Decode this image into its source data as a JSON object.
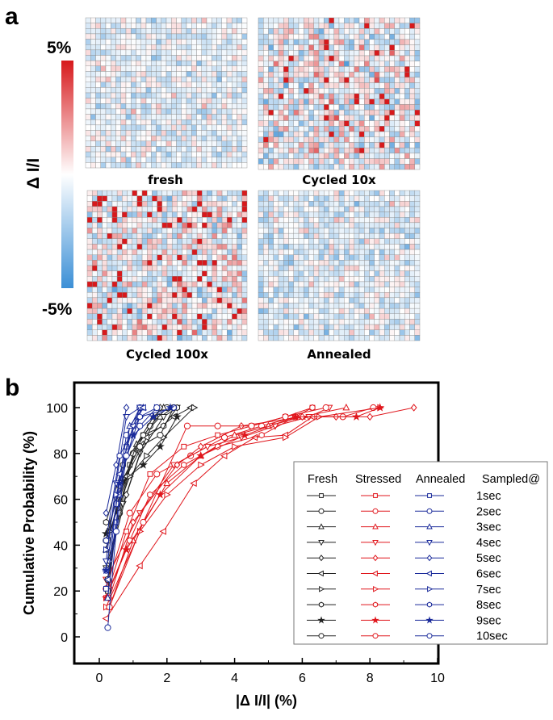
{
  "panel_a": {
    "letter": "a",
    "colorbar": {
      "max_label": "5%",
      "min_label": "-5%",
      "title": "Δ I/I",
      "range": [
        -5,
        5
      ],
      "colors": {
        "max": "#d7191c",
        "mid": "#ffffff",
        "min": "#3b8fd6"
      }
    },
    "heatmaps": [
      {
        "label": "fresh"
      },
      {
        "label": "Cycled 10x"
      },
      {
        "label": "Cycled 100x"
      },
      {
        "label": "Annealed"
      }
    ]
  },
  "panel_b": {
    "letter": "b"
  },
  "chart_data": {
    "type": "line",
    "xlabel": "|Δ I/I| (%)",
    "ylabel": "Cumulative Probability (%)",
    "xlim": [
      -0.75,
      10
    ],
    "ylim": [
      -12,
      111
    ],
    "xticks": [
      "0",
      "2",
      "4",
      "6",
      "8",
      "10"
    ],
    "yticks": [
      "0",
      "20",
      "40",
      "60",
      "80",
      "100"
    ],
    "grid": false,
    "legend_placement": "right",
    "legend": {
      "headers": [
        "Fresh",
        "Stressed",
        "Annealed",
        "Sampled@"
      ],
      "rows": [
        "1sec",
        "2sec",
        "3sec",
        "4sec",
        "5sec",
        "6sec",
        "7sec",
        "8sec",
        "9sec",
        "10sec"
      ]
    },
    "markers": [
      "square",
      "circle",
      "triangle-up",
      "triangle-down",
      "diamond",
      "triangle-left",
      "triangle-right",
      "hexagon",
      "star",
      "circle"
    ],
    "groups": [
      {
        "name": "Fresh",
        "color": "#222222",
        "series": [
          [
            [
              0.25,
              20
            ],
            [
              0.5,
              50
            ],
            [
              0.9,
              75
            ],
            [
              1.3,
              88
            ],
            [
              1.8,
              96
            ],
            [
              2.2,
              100
            ]
          ],
          [
            [
              0.25,
              25
            ],
            [
              0.6,
              54
            ],
            [
              1.0,
              80
            ],
            [
              1.5,
              92
            ],
            [
              2.0,
              100
            ]
          ],
          [
            [
              0.2,
              38
            ],
            [
              0.6,
              62
            ],
            [
              1.1,
              84
            ],
            [
              1.6,
              96
            ],
            [
              1.9,
              100
            ]
          ],
          [
            [
              0.2,
              30
            ],
            [
              0.7,
              58
            ],
            [
              1.2,
              80
            ],
            [
              1.9,
              96
            ],
            [
              2.3,
              100
            ]
          ],
          [
            [
              0.3,
              33
            ],
            [
              0.8,
              62
            ],
            [
              1.3,
              84
            ],
            [
              1.8,
              100
            ]
          ],
          [
            [
              0.25,
              42
            ],
            [
              0.8,
              70
            ],
            [
              1.4,
              87
            ],
            [
              2.2,
              96
            ],
            [
              2.7,
              100
            ]
          ],
          [
            [
              0.3,
              46
            ],
            [
              0.9,
              70
            ],
            [
              1.4,
              79
            ],
            [
              1.9,
              87
            ],
            [
              2.8,
              100
            ]
          ],
          [
            [
              0.2,
              50
            ],
            [
              0.7,
              75
            ],
            [
              1.3,
              88
            ],
            [
              1.9,
              92
            ],
            [
              2.3,
              100
            ]
          ],
          [
            [
              0.2,
              45
            ],
            [
              0.7,
              68
            ],
            [
              1.3,
              75
            ],
            [
              1.8,
              83
            ],
            [
              2.3,
              96
            ]
          ],
          [
            [
              0.2,
              42
            ],
            [
              0.6,
              66
            ],
            [
              1.2,
              83
            ],
            [
              1.8,
              88
            ],
            [
              2.2,
              100
            ]
          ]
        ]
      },
      {
        "name": "Stressed",
        "color": "#e0161c",
        "series": [
          [
            [
              0.2,
              17
            ],
            [
              0.8,
              46
            ],
            [
              1.5,
              71
            ],
            [
              2.5,
              83
            ],
            [
              3.5,
              88
            ],
            [
              4.5,
              92
            ],
            [
              5.5,
              96
            ],
            [
              6.3,
              100
            ]
          ],
          [
            [
              0.2,
              21
            ],
            [
              0.9,
              54
            ],
            [
              1.7,
              71
            ],
            [
              2.7,
              79
            ],
            [
              3.7,
              87
            ],
            [
              4.8,
              92
            ],
            [
              5.8,
              96
            ],
            [
              7.2,
              96
            ],
            [
              8.1,
              100
            ]
          ],
          [
            [
              0.3,
              13
            ],
            [
              1.0,
              42
            ],
            [
              2.0,
              67
            ],
            [
              3.0,
              79
            ],
            [
              4.0,
              88
            ],
            [
              5.0,
              92
            ],
            [
              6.0,
              96
            ],
            [
              7.3,
              100
            ]
          ],
          [
            [
              0.2,
              25
            ],
            [
              1.2,
              54
            ],
            [
              2.2,
              75
            ],
            [
              3.2,
              83
            ],
            [
              4.2,
              87
            ],
            [
              5.2,
              92
            ],
            [
              6.2,
              96
            ],
            [
              6.8,
              100
            ]
          ],
          [
            [
              0.3,
              17
            ],
            [
              1.0,
              50
            ],
            [
              2.3,
              75
            ],
            [
              3.0,
              83
            ],
            [
              4.2,
              92
            ],
            [
              6.0,
              96
            ],
            [
              7.0,
              96
            ],
            [
              8.0,
              96
            ],
            [
              9.3,
              100
            ]
          ],
          [
            [
              0.2,
              8
            ],
            [
              1.2,
              31
            ],
            [
              1.9,
              46
            ],
            [
              2.8,
              67
            ],
            [
              3.7,
              79
            ],
            [
              4.6,
              87
            ],
            [
              5.5,
              88
            ],
            [
              6.3,
              96
            ]
          ],
          [
            [
              0.2,
              13
            ],
            [
              1.2,
              46
            ],
            [
              2.0,
              62
            ],
            [
              3.0,
              75
            ],
            [
              4.0,
              83
            ],
            [
              5.5,
              87
            ],
            [
              6.5,
              96
            ],
            [
              8.3,
              100
            ]
          ],
          [
            [
              0.3,
              21
            ],
            [
              0.9,
              42
            ],
            [
              1.5,
              62
            ],
            [
              2.5,
              75
            ],
            [
              3.5,
              83
            ],
            [
              4.8,
              88
            ],
            [
              6.3,
              100
            ]
          ],
          [
            [
              0.2,
              17
            ],
            [
              0.8,
              38
            ],
            [
              1.8,
              62
            ],
            [
              3.0,
              79
            ],
            [
              4.3,
              88
            ],
            [
              5.8,
              96
            ],
            [
              7.6,
              96
            ],
            [
              8.3,
              100
            ]
          ],
          [
            [
              0.3,
              13
            ],
            [
              1.3,
              50
            ],
            [
              2.6,
              92
            ],
            [
              3.5,
              92
            ],
            [
              4.5,
              92
            ],
            [
              5.5,
              96
            ],
            [
              6.7,
              100
            ]
          ]
        ]
      },
      {
        "name": "Annealed",
        "color": "#1a2a9a",
        "series": [
          [
            [
              0.2,
              21
            ],
            [
              0.5,
              50
            ],
            [
              0.8,
              83
            ],
            [
              1.2,
              100
            ]
          ],
          [
            [
              0.2,
              29
            ],
            [
              0.5,
              58
            ],
            [
              0.8,
              88
            ],
            [
              1.2,
              100
            ]
          ],
          [
            [
              0.25,
              17
            ],
            [
              0.6,
              62
            ],
            [
              0.9,
              92
            ],
            [
              1.3,
              100
            ]
          ],
          [
            [
              0.2,
              33
            ],
            [
              0.5,
              67
            ],
            [
              0.8,
              96
            ],
            [
              1.2,
              100
            ]
          ],
          [
            [
              0.2,
              54
            ],
            [
              0.5,
              75
            ],
            [
              0.8,
              100
            ]
          ],
          [
            [
              0.25,
              25
            ],
            [
              0.6,
              71
            ],
            [
              1.0,
              92
            ],
            [
              1.3,
              100
            ]
          ],
          [
            [
              0.2,
              38
            ],
            [
              0.5,
              62
            ],
            [
              0.8,
              79
            ],
            [
              1.2,
              96
            ],
            [
              1.7,
              100
            ]
          ],
          [
            [
              0.2,
              42
            ],
            [
              0.6,
              79
            ],
            [
              1.2,
              96
            ],
            [
              2.2,
              100
            ]
          ],
          [
            [
              0.2,
              29
            ],
            [
              0.6,
              67
            ],
            [
              1.0,
              88
            ],
            [
              1.6,
              96
            ],
            [
              2.1,
              100
            ]
          ],
          [
            [
              0.25,
              4
            ],
            [
              0.5,
              46
            ],
            [
              0.8,
              79
            ],
            [
              1.2,
              92
            ],
            [
              1.7,
              100
            ]
          ]
        ]
      }
    ]
  }
}
